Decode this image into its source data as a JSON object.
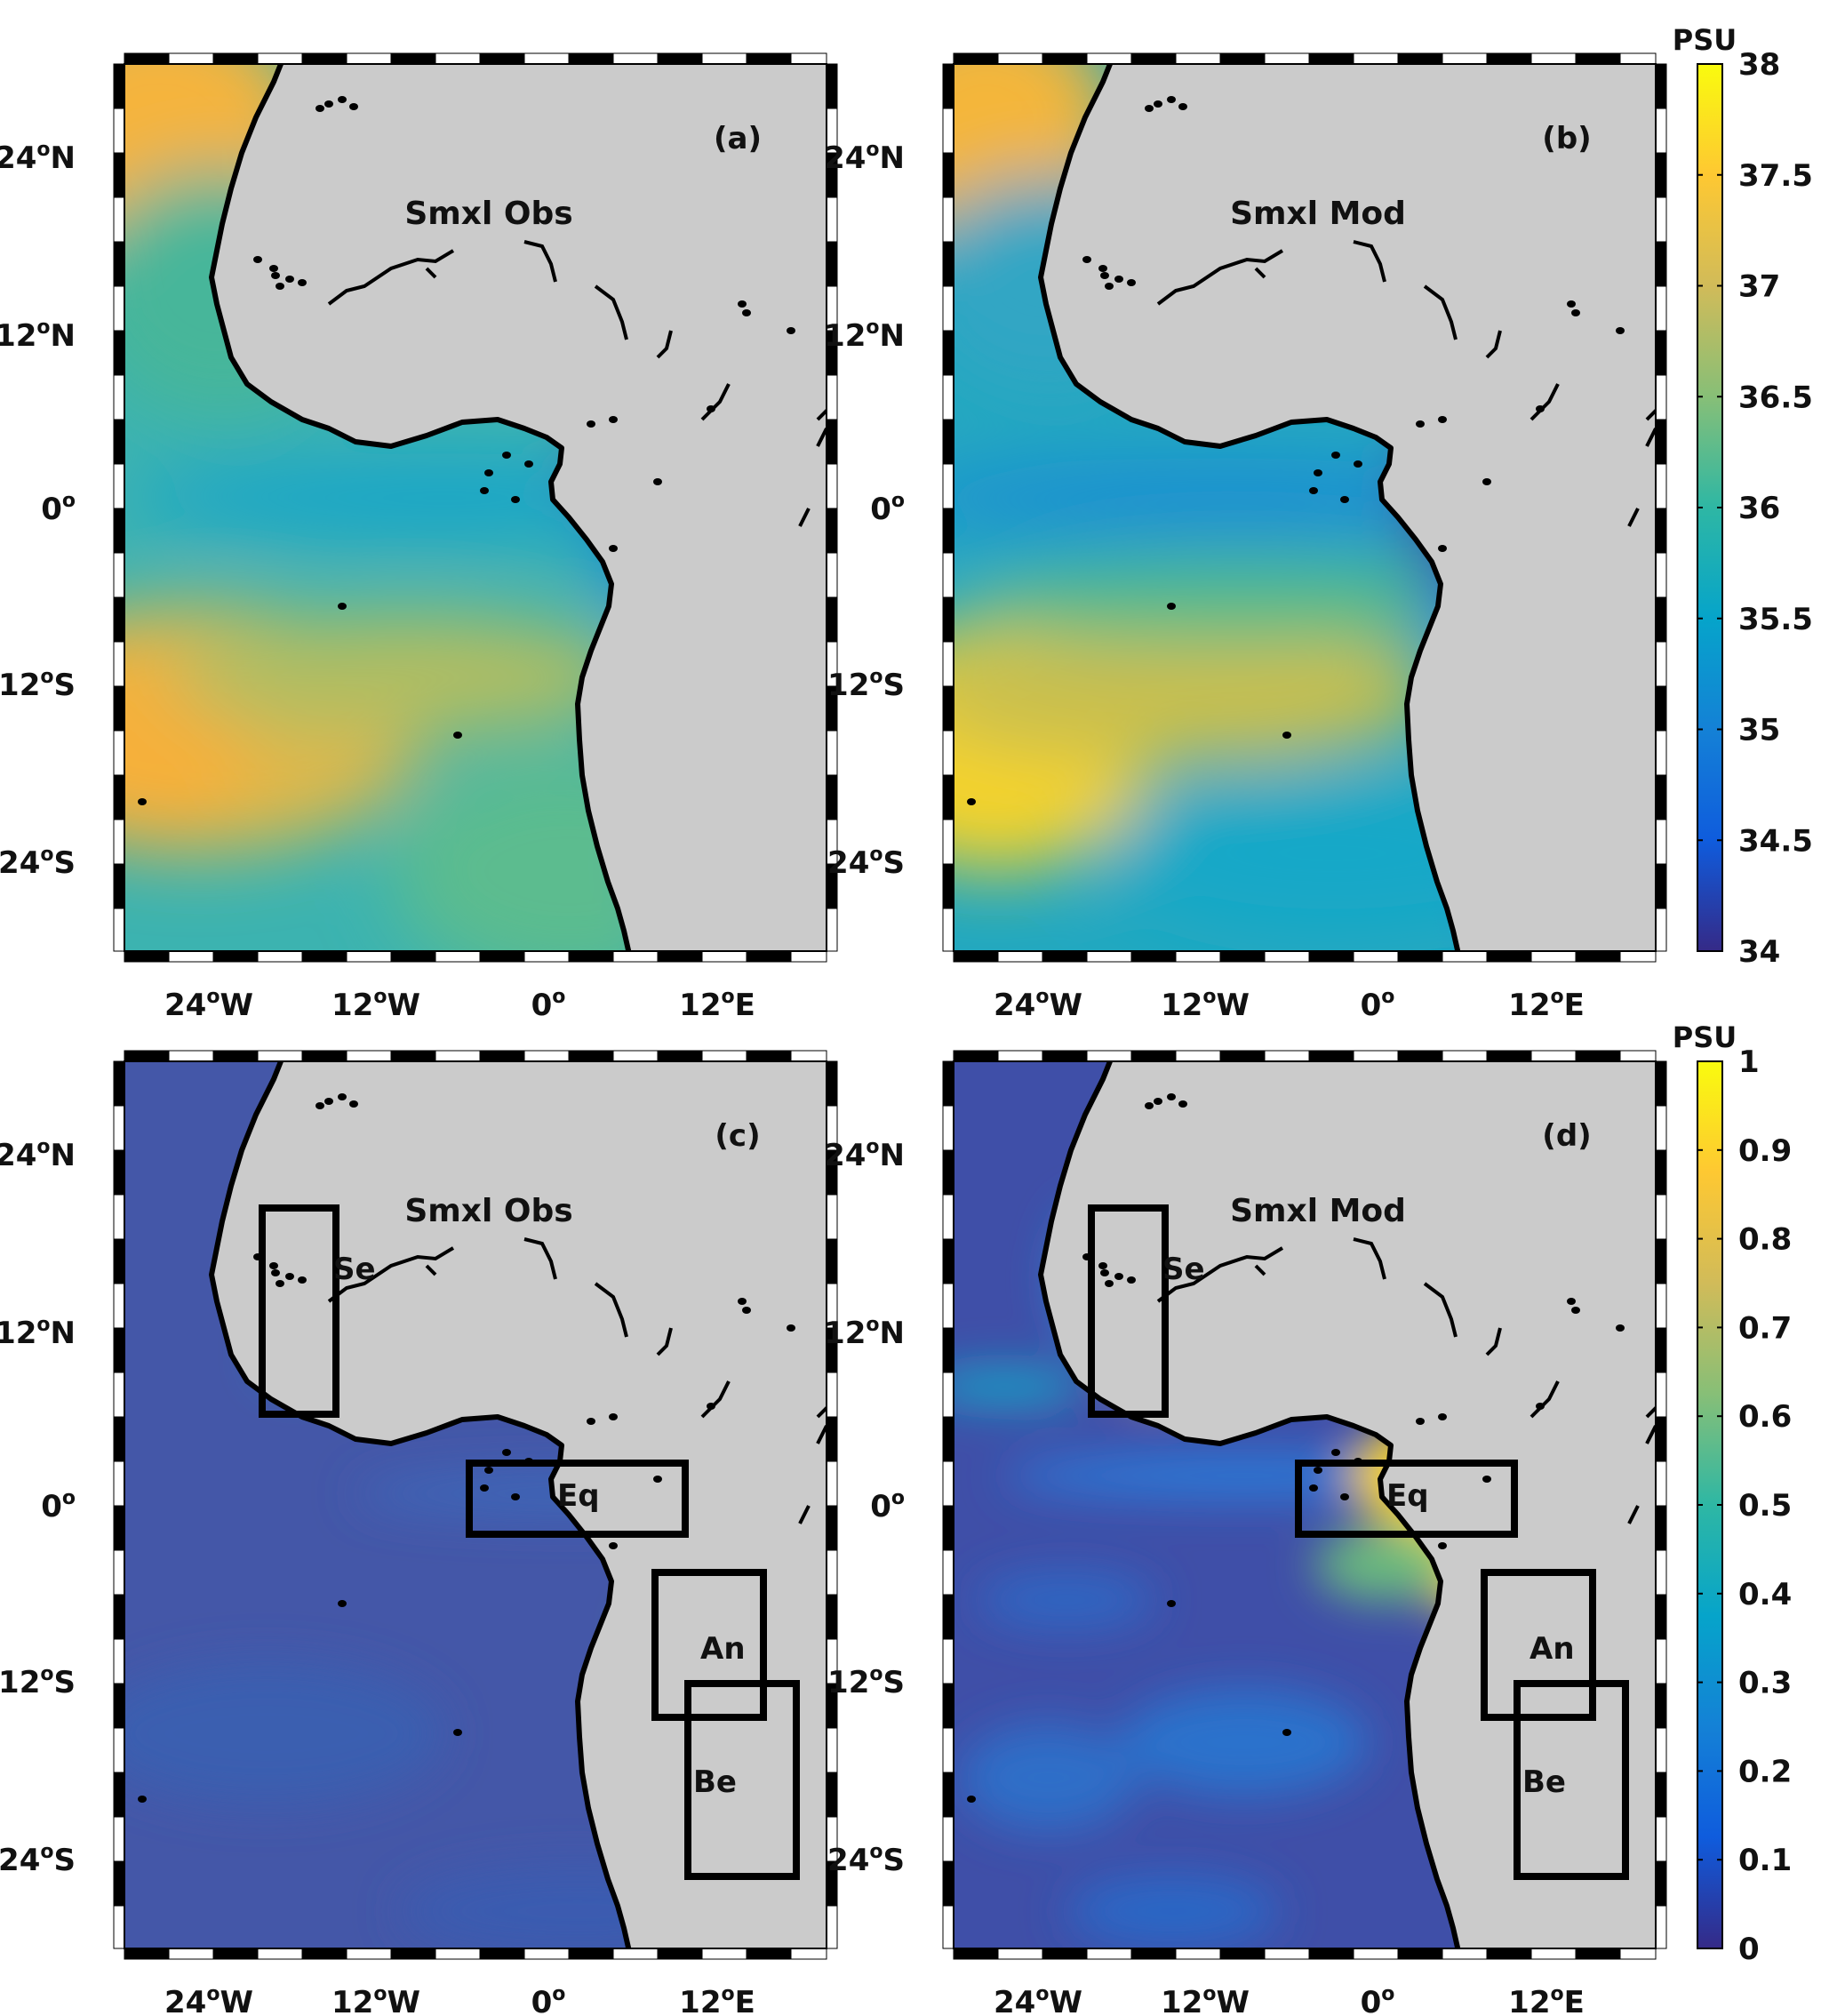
{
  "panels": [
    {
      "id": "a",
      "letter": "(a)",
      "label": "Smxl Obs"
    },
    {
      "id": "b",
      "letter": "(b)",
      "label": "Smxl Mod"
    },
    {
      "id": "c",
      "letter": "(c)",
      "label": "Smxl Obs"
    },
    {
      "id": "d",
      "letter": "(d)",
      "label": "Smxl Mod"
    }
  ],
  "lat_ticks": [
    "24ᴼN",
    "12ᴼN",
    "0ᴼ",
    "12ᴼS",
    "24ᴼS"
  ],
  "lat_ticks_text": [
    {
      "base": "24",
      "sup": "o",
      "hemi": "N"
    },
    {
      "base": "12",
      "sup": "o",
      "hemi": "N"
    },
    {
      "base": "0",
      "sup": "o",
      "hemi": ""
    },
    {
      "base": "12",
      "sup": "o",
      "hemi": "S"
    },
    {
      "base": "24",
      "sup": "o",
      "hemi": "S"
    }
  ],
  "lon_ticks_text": [
    {
      "base": "24",
      "sup": "o",
      "hemi": "W"
    },
    {
      "base": "12",
      "sup": "o",
      "hemi": "W"
    },
    {
      "base": "0",
      "sup": "o",
      "hemi": ""
    },
    {
      "base": "12",
      "sup": "o",
      "hemi": "E"
    }
  ],
  "colorbar_top": {
    "title": "PSU",
    "ticks": [
      "38",
      "37.5",
      "37",
      "36.5",
      "36",
      "35.5",
      "35",
      "34.5",
      "34"
    ],
    "range": [
      34,
      38
    ]
  },
  "colorbar_bottom": {
    "title": "PSU",
    "ticks": [
      "1",
      "0.9",
      "0.8",
      "0.7",
      "0.6",
      "0.5",
      "0.4",
      "0.3",
      "0.2",
      "0.1",
      "0"
    ],
    "range": [
      0,
      1
    ]
  },
  "regions": [
    "Se",
    "Eq",
    "An",
    "Be"
  ],
  "colors": {
    "land": "#cbcbcb",
    "coast": "#000000",
    "parula": [
      "#352a87",
      "#0f5cdd",
      "#1481d6",
      "#06a4ca",
      "#2eb7a4",
      "#87bf77",
      "#d1bb59",
      "#fec832",
      "#f9fb0e"
    ]
  }
}
